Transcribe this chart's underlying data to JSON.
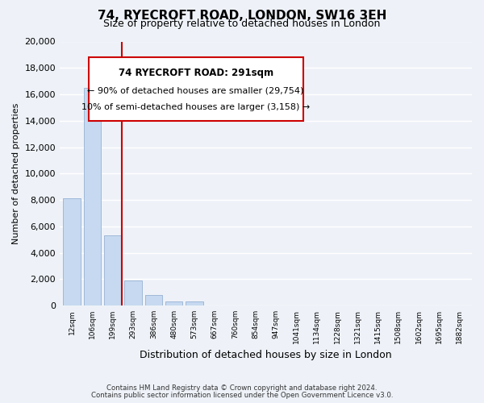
{
  "title": "74, RYECROFT ROAD, LONDON, SW16 3EH",
  "subtitle": "Size of property relative to detached houses in London",
  "xlabel": "Distribution of detached houses by size in London",
  "ylabel": "Number of detached properties",
  "bar_values": [
    8100,
    16500,
    5300,
    1900,
    800,
    300,
    300,
    0,
    0,
    0,
    0,
    0,
    0,
    0,
    0,
    0,
    0,
    0,
    0,
    0
  ],
  "bin_labels": [
    "12sqm",
    "106sqm",
    "199sqm",
    "293sqm",
    "386sqm",
    "480sqm",
    "573sqm",
    "667sqm",
    "760sqm",
    "854sqm",
    "947sqm",
    "1041sqm",
    "1134sqm",
    "1228sqm",
    "1321sqm",
    "1415sqm",
    "1508sqm",
    "1602sqm",
    "1695sqm",
    "1882sqm"
  ],
  "bar_color": "#c6d9f0",
  "bar_edge_color": "#a0b8d8",
  "vline_color": "#cc0000",
  "vline_pos": 2.425,
  "annotation_title": "74 RYECROFT ROAD: 291sqm",
  "annotation_line1": "← 90% of detached houses are smaller (29,754)",
  "annotation_line2": "10% of semi-detached houses are larger (3,158) →",
  "annotation_box_color": "#ffffff",
  "annotation_border_color": "#cc0000",
  "ylim": [
    0,
    20000
  ],
  "yticks": [
    0,
    2000,
    4000,
    6000,
    8000,
    10000,
    12000,
    14000,
    16000,
    18000,
    20000
  ],
  "footnote1": "Contains HM Land Registry data © Crown copyright and database right 2024.",
  "footnote2": "Contains public sector information licensed under the Open Government Licence v3.0.",
  "bg_color": "#eef2f8",
  "plot_bg_color": "#eef2f8"
}
